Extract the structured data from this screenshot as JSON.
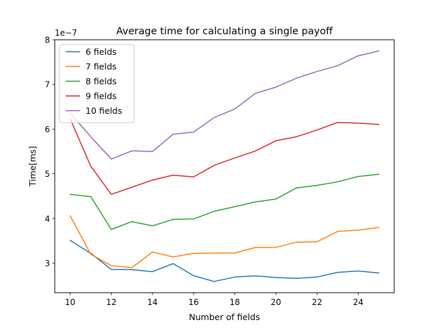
{
  "chart_data": {
    "type": "line",
    "title": "Average time for calculating a single payoff",
    "xlabel": "Number of fields",
    "ylabel": "Time[ms]",
    "y_offset_text": "1e−7",
    "xlim": [
      9.25,
      25.75
    ],
    "ylim": [
      2.34,
      8.0
    ],
    "x_ticks": [
      10,
      12,
      14,
      16,
      18,
      20,
      22,
      24
    ],
    "y_ticks": [
      3,
      4,
      5,
      6,
      7,
      8
    ],
    "y_tick_scale": "1e-7",
    "grid": false,
    "legend_position": "upper-left",
    "x": [
      10,
      11,
      12,
      13,
      14,
      15,
      16,
      17,
      18,
      19,
      20,
      21,
      22,
      23,
      24,
      25
    ],
    "series": [
      {
        "name": "6 fields",
        "color": "#1f77b4",
        "values": [
          3.51,
          3.22,
          2.86,
          2.855,
          2.81,
          2.99,
          2.72,
          2.59,
          2.69,
          2.715,
          2.68,
          2.66,
          2.69,
          2.795,
          2.825,
          2.78
        ]
      },
      {
        "name": "7 fields",
        "color": "#ff7f0e",
        "values": [
          4.06,
          3.2,
          2.945,
          2.9,
          3.25,
          3.14,
          3.22,
          3.225,
          3.23,
          3.35,
          3.355,
          3.47,
          3.48,
          3.71,
          3.74,
          3.8
        ]
      },
      {
        "name": "8 fields",
        "color": "#2ca02c",
        "values": [
          4.54,
          4.49,
          3.755,
          3.93,
          3.835,
          3.98,
          3.99,
          4.16,
          4.265,
          4.37,
          4.435,
          4.685,
          4.74,
          4.82,
          4.94,
          4.99
        ]
      },
      {
        "name": "9 fields",
        "color": "#d62728",
        "values": [
          6.23,
          5.17,
          4.54,
          4.7,
          4.86,
          4.97,
          4.93,
          5.19,
          5.355,
          5.51,
          5.74,
          5.83,
          5.98,
          6.15,
          6.135,
          6.105
        ]
      },
      {
        "name": "10 fields",
        "color": "#9467bd",
        "values": [
          6.36,
          5.83,
          5.33,
          5.515,
          5.5,
          5.885,
          5.935,
          6.26,
          6.45,
          6.8,
          6.94,
          7.14,
          7.29,
          7.42,
          7.64,
          7.75
        ]
      }
    ]
  }
}
